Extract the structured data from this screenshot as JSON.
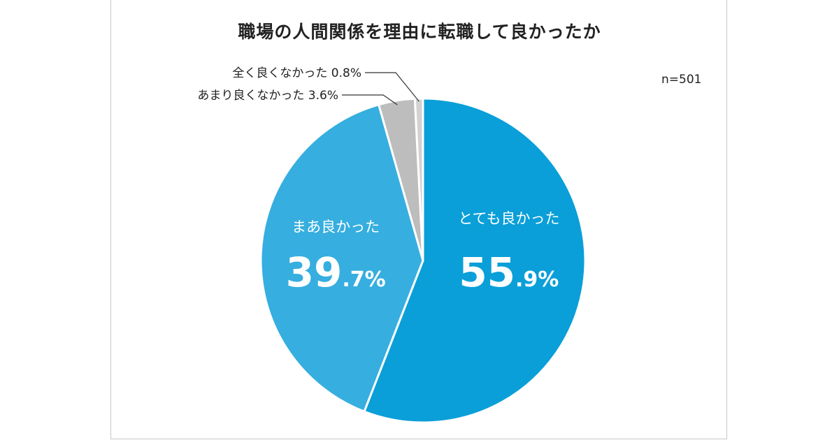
{
  "title": "職場の人間関係を理由に転職して良かったか",
  "sample_size": "n=501",
  "chart_data": {
    "type": "pie",
    "title": "職場の人間関係を理由に転職して良かったか",
    "categories": [
      "とても良かった",
      "まあ良かった",
      "あまり良くなかった",
      "全く良くなかった"
    ],
    "values": [
      55.9,
      39.7,
      3.6,
      0.8
    ],
    "value_labels": [
      {
        "int": "55",
        "dec": ".9%"
      },
      {
        "int": "39",
        "dec": ".7%"
      },
      {
        "int": "3.6%",
        "dec": ""
      },
      {
        "int": "0.8%",
        "dec": ""
      }
    ],
    "callouts": [
      "あまり良くなかった 3.6%",
      "全く良くなかった 0.8%"
    ],
    "colors": [
      "#0a9fd8",
      "#36aedf",
      "#bdbdbd",
      "#d2d2d2"
    ],
    "start_angle": "12 o'clock",
    "direction": "clockwise"
  }
}
